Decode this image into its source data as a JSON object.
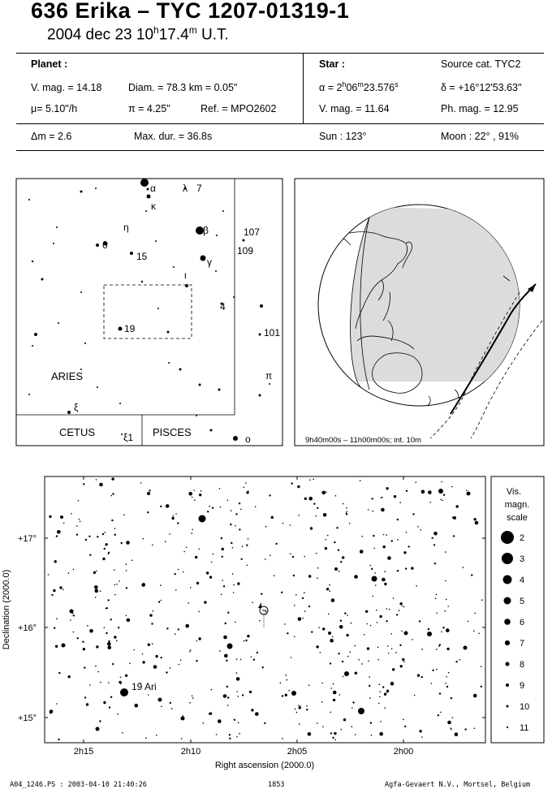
{
  "header": {
    "title": "636 Erika  –  TYC 1207-01319-1",
    "date": "2004 dec 23  10",
    "hour_sup": "h",
    "minutes": "17.4",
    "min_sup": "m",
    "timescale": " U.T.",
    "planet_label": "Planet :",
    "vmag": "V. mag. = 14.18",
    "diam": "Diam. = 78.3 km = 0.05\"",
    "mu": "μ=  5.10\"/h",
    "pi": "π =  4.25\"",
    "ref": "Ref. = MPO2602",
    "star_label": "Star :",
    "source": "Source cat.  TYC2",
    "alpha_pre": "α = 2",
    "alpha_h": "h",
    "alpha_mid": "06",
    "alpha_m": "m",
    "alpha_post": "23.576",
    "alpha_s": "s",
    "delta": "δ = +16°12'53.63\"",
    "star_vmag": "V. mag. = 11.64",
    "phmag": "Ph. mag. = 12.95",
    "dm": "Δm = 2.6",
    "maxdur": "Max. dur. = 36.8s",
    "sun": "Sun : 123°",
    "moon": "Moon :  22° , 91%"
  },
  "finder": {
    "constellations": [
      "ARIES",
      "CETUS",
      "PISCES"
    ],
    "star_labels": [
      {
        "t": "α"
      },
      {
        "t": "λ"
      },
      {
        "t": "7"
      },
      {
        "t": "κ"
      },
      {
        "t": "η"
      },
      {
        "t": "β"
      },
      {
        "t": "107"
      },
      {
        "t": "θ"
      },
      {
        "t": "15"
      },
      {
        "t": "γ"
      },
      {
        "t": "109"
      },
      {
        "t": "ι"
      },
      {
        "t": "4"
      },
      {
        "t": "19"
      },
      {
        "t": "101"
      },
      {
        "t": "π"
      },
      {
        "t": "ξ"
      },
      {
        "t": "ξ1"
      },
      {
        "t": "o"
      }
    ]
  },
  "globe": {
    "caption": "9h40m00s – 11h00m00s; int. 10m"
  },
  "chart": {
    "y_axis_label": "Declination (2000.0)",
    "x_axis_label": "Right ascension (2000.0)",
    "dec_ticks": [
      "+17°",
      "+16°",
      "+15°"
    ],
    "ra_ticks": [
      "2h15",
      "2h10",
      "2h05",
      "2h00"
    ],
    "star_label": "19 Ari",
    "scale_title_1": "Vis.",
    "scale_title_2": "magn.",
    "scale_title_3": "scale",
    "mags": [
      "2",
      "3",
      "4",
      "5",
      "6",
      "7",
      "8",
      "9",
      "10",
      "11"
    ]
  },
  "footer": {
    "left": "A04_1246.PS : 2003-04-10 21:40:26",
    "center": "1853",
    "right": "Agfa-Gevaert N.V., Mortsel, Belgium"
  }
}
